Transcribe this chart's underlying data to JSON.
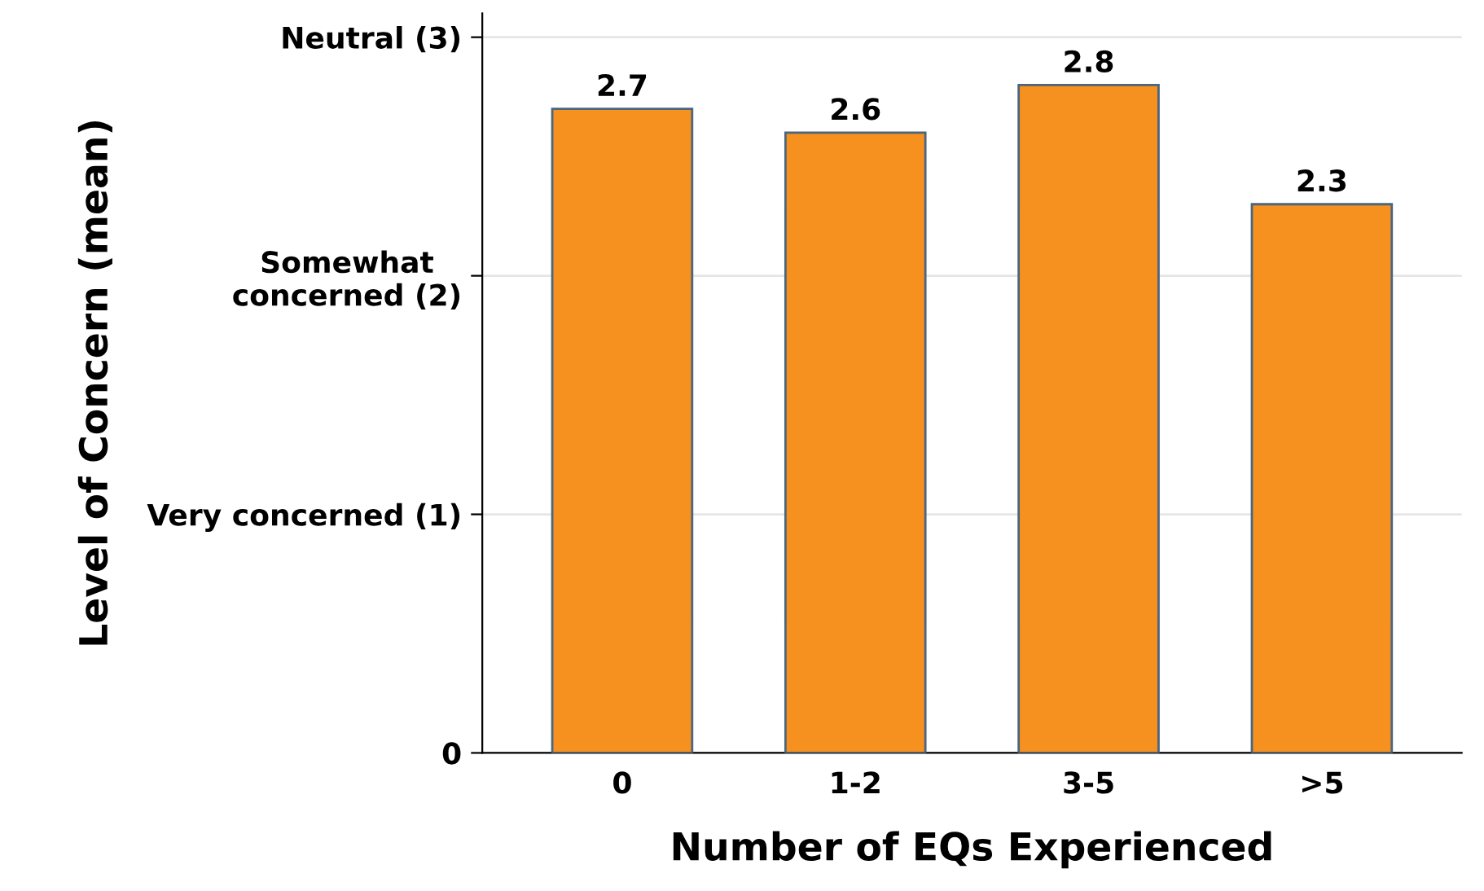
{
  "chart_data": {
    "type": "bar",
    "xlabel": "Number of EQs Experienced",
    "ylabel": "Level of Concern (mean)",
    "categories": [
      "0",
      "1-2",
      "3-5",
      ">5"
    ],
    "values": [
      2.7,
      2.6,
      2.8,
      2.3
    ],
    "color": "#f6901e",
    "ylim": [
      0,
      3.1
    ],
    "yticks": [
      0,
      {
        "value": 1,
        "label": "Very concerned (1)"
      },
      {
        "value": 2,
        "label": "Somewhat\nconcerned (2)"
      },
      {
        "value": 3,
        "label": "Neutral (3)"
      }
    ],
    "grid": "y",
    "data_labels": true
  }
}
